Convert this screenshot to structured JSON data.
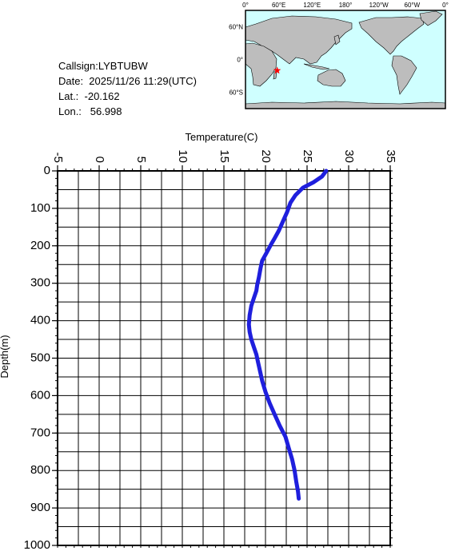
{
  "station": {
    "callsign": "Callsign:LYBTUBW",
    "date": "Date:  2025/11/26 11:29(UTC)",
    "lat": "Lat.:  -20.162",
    "lon": "Lon.:   56.998"
  },
  "map": {
    "lon_labels": [
      "0°",
      "60°E",
      "120°E",
      "180°",
      "120°W",
      "60°W",
      "0°"
    ],
    "lat_labels": [
      "60°N",
      "0°",
      "60°S"
    ],
    "ocean_color": "#cfffff",
    "land_color": "#bdbdbd",
    "marker_color": "#ff0000",
    "marker": {
      "lon": 56.998,
      "lat": -20.162
    }
  },
  "chart_data": {
    "type": "line",
    "xlabel": "Temperature(C)",
    "ylabel": "Depth(m)",
    "xlim": [
      -5,
      35
    ],
    "ylim": [
      0,
      1000
    ],
    "y_inverted": true,
    "x_axis_position": "top",
    "x_ticks": [
      "-5",
      "0",
      "5",
      "10",
      "15",
      "20",
      "25",
      "30",
      "35"
    ],
    "y_ticks": [
      "0",
      "100",
      "200",
      "300",
      "400",
      "500",
      "600",
      "700",
      "800",
      "900",
      "1000"
    ],
    "grid": true,
    "line_color": "#1f1fdd",
    "series": [
      {
        "temperature": [
          27.3,
          26.8,
          25.8,
          24.5,
          23.6,
          23.0,
          22.6,
          22.1,
          21.6,
          21.1,
          20.7,
          20.1,
          19.6,
          19.4,
          19.2,
          19.0,
          18.9,
          18.6,
          18.3,
          18.1,
          18.0,
          18.1,
          18.3,
          18.6,
          18.9,
          19.1,
          19.3,
          19.6,
          20.0,
          20.5,
          21.1,
          21.7,
          22.4,
          22.8,
          23.2,
          23.5,
          23.7,
          23.9,
          24.0
        ],
        "depth": [
          0,
          15,
          30,
          45,
          65,
          85,
          110,
          135,
          160,
          180,
          195,
          220,
          240,
          260,
          285,
          305,
          320,
          340,
          360,
          385,
          410,
          430,
          450,
          470,
          490,
          510,
          530,
          560,
          590,
          620,
          650,
          680,
          710,
          740,
          770,
          800,
          830,
          855,
          875
        ]
      }
    ]
  }
}
